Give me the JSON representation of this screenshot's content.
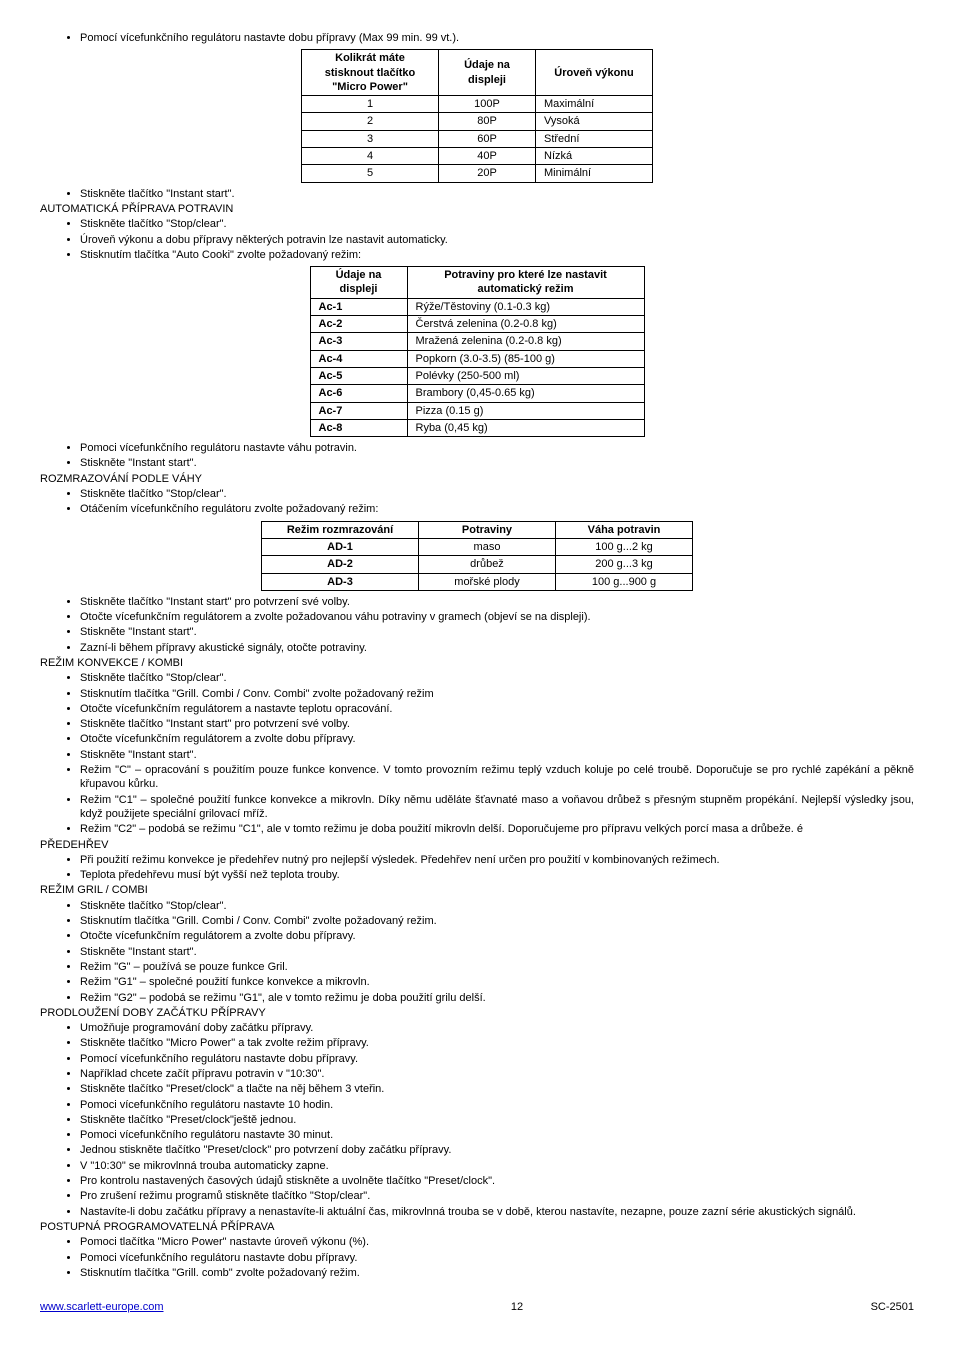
{
  "intro": [
    "Pomocí vícefunkčního regulátoru nastavte dobu přípravy (Max 99 min. 99 vt.)."
  ],
  "table1": {
    "headers": [
      "Kolikrát máte stisknout tlačítko \"Micro Power\"",
      "Údaje na displeji",
      "Úroveň výkonu"
    ],
    "rows": [
      [
        "1",
        "100P",
        "Maximální"
      ],
      [
        "2",
        "80P",
        "Vysoká"
      ],
      [
        "3",
        "60P",
        "Střední"
      ],
      [
        "4",
        "40P",
        "Nízká"
      ],
      [
        "5",
        "20P",
        "Minimální"
      ]
    ]
  },
  "after_t1_bullets": [
    "Stiskněte tlačítko \"Instant start\"."
  ],
  "heading_auto": "AUTOMATICKÁ PŘÍPRAVA POTRAVIN",
  "auto_bullets": [
    "Stiskněte tlačítko \"Stop/clear\".",
    "Úroveň výkonu a dobu přípravy některých potravin lze nastavit automaticky.",
    "Stisknutím tlačítka \"Auto Cooki\" zvolte požadovaný režim:"
  ],
  "table2": {
    "headers": [
      "Údaje na displeji",
      "Potraviny pro které lze nastavit automatický režim"
    ],
    "rows": [
      [
        "Ac-1",
        "Rýže/Těstoviny (0.1-0.3 kg)"
      ],
      [
        "Ac-2",
        "Čerstvá zelenina (0.2-0.8 kg)"
      ],
      [
        "Ac-3",
        "Mražená zelenina (0.2-0.8 kg)"
      ],
      [
        "Ac-4",
        "Popkorn (3.0-3.5) (85-100 g)"
      ],
      [
        "Ac-5",
        "Polévky (250-500 ml)"
      ],
      [
        "Ac-6",
        "Brambory (0,45-0.65 kg)"
      ],
      [
        "Ac-7",
        "Pizza (0.15 g)"
      ],
      [
        "Ac-8",
        "Ryba (0,45 kg)"
      ]
    ]
  },
  "after_t2_bullets": [
    "Pomoci vícefunkčního regulátoru nastavte váhu potravin.",
    "Stiskněte \"Instant start\"."
  ],
  "heading_defrost": "ROZMRAZOVÁNÍ PODLE VÁHY",
  "defrost_bullets1": [
    "Stiskněte tlačítko \"Stop/clear\".",
    "Otáčením vícefunkčního regulátoru zvolte požadovaný režim:"
  ],
  "table3": {
    "headers": [
      "Režim rozmrazování",
      "Potraviny",
      "Váha potravin"
    ],
    "rows": [
      [
        "AD-1",
        "maso",
        "100 g...2 kg"
      ],
      [
        "AD-2",
        "drůbež",
        "200 g...3 kg"
      ],
      [
        "AD-3",
        "mořské plody",
        "100 g...900 g"
      ]
    ]
  },
  "defrost_bullets2": [
    "Stiskněte tlačítko \"Instant start\" pro potvrzení své volby.",
    "Otočte vícefunkčním regulátorem a zvolte požadovanou váhu potraviny v gramech (objeví se na displeji).",
    "Stiskněte \"Instant start\".",
    "Zazní-li během přípravy akustické signály, otočte potraviny."
  ],
  "heading_konv": "REŽIM KONVEKCE / KOMBI",
  "konv_bullets": [
    "Stiskněte tlačítko \"Stop/clear\".",
    "Stisknutím tlačítka \"Grill. Combi / Conv. Combi\" zvolte požadovaný režim",
    "Otočte vícefunkčním regulátorem a nastavte teplotu opracování.",
    "Stiskněte tlačítko \"Instant start\" pro potvrzení své volby.",
    "Otočte vícefunkčním regulátorem a zvolte dobu přípravy.",
    "Stiskněte \"Instant start\".",
    "Režim \"C\" – opracování s použitím pouze funkce konvence. V tomto provozním režimu teplý vzduch koluje po celé troubě. Doporučuje se pro rychlé zapékání a pěkně křupavou kůrku.",
    "Režim \"C1\" – společné použití funkce konvekce a mikrovln. Díky němu uděláte šťavnaté maso a voňavou drůbež s přesným stupněm propékání. Nejlepší výsledky jsou, když použijete speciální grilovací mříž.",
    "Režim \"C2\" – podobá se režimu \"C1\", ale v tomto režimu je doba použití mikrovln delší. Doporučujeme pro přípravu velkých porcí masa a drůbeže. é"
  ],
  "heading_preheat": "PŘEDEHŘEV",
  "preheat_bullets": [
    "Při použití režimu konvekce je předehřev nutný pro nejlepší výsledek. Předehřev není určen pro použití v kombinovaných režimech.",
    "Teplota předehřevu musí být vyšší než teplota trouby."
  ],
  "heading_grill": "REŽIM GRIL / COMBI",
  "grill_bullets": [
    "Stiskněte tlačítko \"Stop/clear\".",
    "Stisknutím tlačítka \"Grill. Combi / Conv. Combi\" zvolte požadovaný režim.",
    "Otočte vícefunkčním regulátorem a zvolte dobu přípravy.",
    "Stiskněte \"Instant start\".",
    "Režim \"G\" – používá se pouze funkce Gril.",
    "Režim \"G1\" – společné použití funkce konvekce a mikrovln.",
    "Režim \"G2\" – podobá se režimu \"G1\", ale v tomto režimu je doba použití grilu delší."
  ],
  "heading_delay": "PRODLOUŽENÍ DOBY ZAČÁTKU PŘÍPRAVY",
  "delay_bullets": [
    "Umožňuje programování doby začátku přípravy.",
    "Stiskněte tlačítko \"Micro Power\" a tak zvolte režim přípravy.",
    "Pomocí vícefunkčního regulátoru nastavte dobu přípravy.",
    "Například chcete začít přípravu potravin v \"10:30\".",
    "Stiskněte tlačítko \"Preset/clock\" a tlačte na něj během 3 vteřin.",
    "Pomoci vícefunkčního regulátoru nastavte 10 hodin.",
    "Stiskněte tlačítko \"Preset/clock\"ještě jednou.",
    "Pomoci vícefunkčního regulátoru nastavte 30 minut.",
    "Jednou stiskněte tlačítko \"Preset/clock\" pro potvrzení doby začátku přípravy.",
    "V \"10:30\" se mikrovlnná trouba automaticky zapne.",
    "Pro kontrolu nastavených časových údajů stiskněte a uvolněte tlačítko \"Preset/clock\".",
    "Pro zrušení režimu programů stiskněte tlačítko \"Stop/clear\".",
    "Nastavíte-li dobu začátku přípravy a nenastavíte-li aktuální čas, mikrovlnná trouba se v době, kterou nastavíte, nezapne, pouze zazní série akustických signálů."
  ],
  "heading_prog": "POSTUPNÁ PROGRAMOVATELNÁ PŘÍPRAVA",
  "prog_bullets": [
    "Pomoci tlačítka \"Micro Power\" nastavte úroveň výkonu (%).",
    "Pomoci vícefunkčního regulátoru nastavte dobu přípravy.",
    "Stisknutím tlačítka \"Grill. comb\" zvolte požadovaný režim."
  ],
  "footer": {
    "url_text": "www.scarlett-europe.com",
    "url_href": "http://www.scarlett-europe.com",
    "page": "12",
    "model": "SC-2501"
  }
}
